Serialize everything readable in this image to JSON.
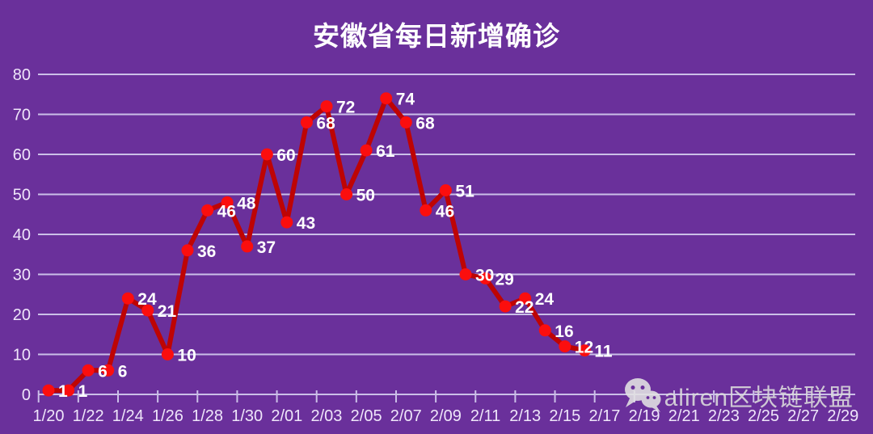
{
  "title": "安徽省每日新增确诊",
  "watermark": {
    "icon": "wechat-icon",
    "text": "aliren区块链联盟"
  },
  "colors": {
    "background": "#6A309B",
    "gridline": "#CBBFE8",
    "axis_label": "#EFE6FA",
    "line": "#BE0404",
    "marker": "#FB0E0E",
    "data_label": "#FFFFFF",
    "watermark": "#DCDCDC"
  },
  "chart_data": {
    "type": "line",
    "title": "安徽省每日新增确诊",
    "x": [
      "1/20",
      "1/21",
      "1/22",
      "1/23",
      "1/24",
      "1/25",
      "1/26",
      "1/27",
      "1/28",
      "1/29",
      "1/30",
      "1/31",
      "2/02",
      "2/02",
      "2/03",
      "2/04",
      "2/05",
      "2/06",
      "2/07",
      "2/08",
      "2/09",
      "2/10",
      "2/11",
      "2/12",
      "2/13",
      "2/14",
      "2/15",
      "2/16"
    ],
    "values": [
      1,
      1,
      6,
      6,
      24,
      21,
      10,
      36,
      46,
      48,
      37,
      60,
      43,
      68,
      72,
      50,
      61,
      74,
      68,
      46,
      51,
      30,
      29,
      22,
      24,
      16,
      12,
      11
    ],
    "data_labels": [
      1,
      1,
      6,
      6,
      24,
      21,
      10,
      36,
      46,
      48,
      37,
      60,
      43,
      68,
      72,
      50,
      61,
      74,
      68,
      46,
      51,
      30,
      29,
      22,
      24,
      16,
      12,
      11
    ],
    "x_axis_labels": [
      "1/20",
      "1/22",
      "1/24",
      "1/26",
      "1/28",
      "1/30",
      "2/01",
      "2/03",
      "2/05",
      "2/07",
      "2/09",
      "2/11",
      "2/13",
      "2/15",
      "2/17",
      "2/19",
      "2/21",
      "2/23",
      "2/25",
      "2/27",
      "2/29"
    ],
    "x_axis_total_days": 41,
    "y_ticks": [
      0,
      10,
      20,
      30,
      40,
      50,
      60,
      70,
      80
    ],
    "ylim": [
      0,
      80
    ],
    "grid": true,
    "legend": "none",
    "marker": "circle",
    "data_label_position": "right"
  }
}
